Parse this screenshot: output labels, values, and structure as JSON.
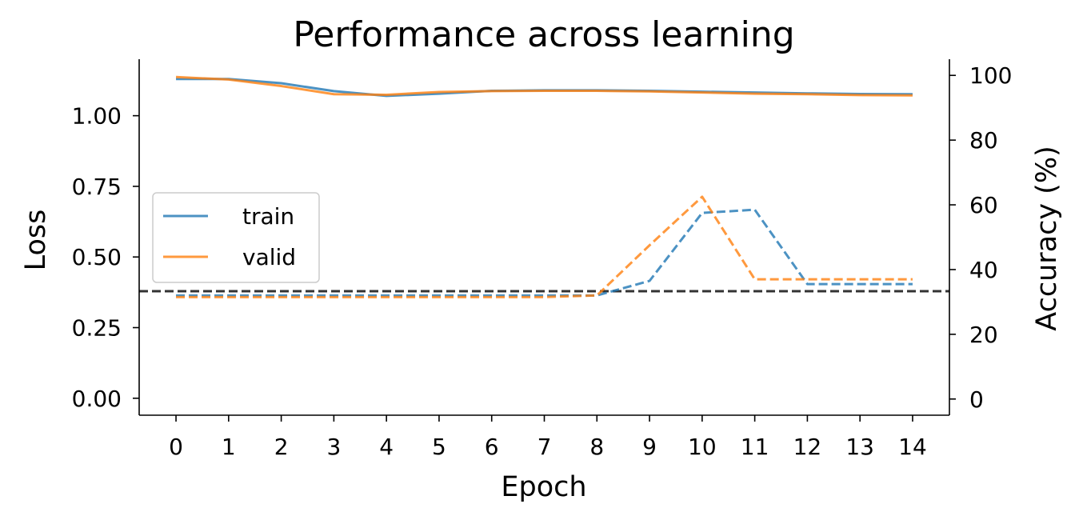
{
  "chart_data": {
    "type": "line",
    "title": "Performance across learning",
    "xlabel": "Epoch",
    "ylabel": "Loss",
    "y2label": "Accuracy (%)",
    "x": [
      0,
      1,
      2,
      3,
      4,
      5,
      6,
      7,
      8,
      9,
      10,
      11,
      12,
      13,
      14
    ],
    "xlim": [
      -0.7,
      14.7
    ],
    "ylim": [
      -0.06,
      1.2
    ],
    "y2lim": [
      -5,
      105
    ],
    "xticks": [
      "0",
      "1",
      "2",
      "3",
      "4",
      "5",
      "6",
      "7",
      "8",
      "9",
      "10",
      "11",
      "12",
      "13",
      "14"
    ],
    "yticks": [
      0.0,
      0.25,
      0.5,
      0.75,
      1.0
    ],
    "ytick_labels": [
      "0.00",
      "0.25",
      "0.50",
      "0.75",
      "1.00"
    ],
    "y2ticks": [
      0,
      20,
      40,
      60,
      80,
      100
    ],
    "y2tick_labels": [
      "0",
      "20",
      "40",
      "60",
      "80",
      "100"
    ],
    "colors": {
      "train": "#1f77b4",
      "valid": "#ff7f0e",
      "chance": "#333333"
    },
    "series": [
      {
        "name": "train",
        "metric": "loss",
        "axis": "left",
        "style": "solid",
        "color": "#1f77b4",
        "values": [
          1.13,
          1.13,
          1.115,
          1.087,
          1.07,
          1.078,
          1.088,
          1.09,
          1.09,
          1.088,
          1.085,
          1.082,
          1.079,
          1.077,
          1.076
        ]
      },
      {
        "name": "valid",
        "metric": "loss",
        "axis": "left",
        "style": "solid",
        "color": "#ff7f0e",
        "values": [
          1.137,
          1.128,
          1.105,
          1.076,
          1.074,
          1.084,
          1.087,
          1.088,
          1.088,
          1.086,
          1.082,
          1.078,
          1.076,
          1.073,
          1.072
        ]
      },
      {
        "axis": "right",
        "metric": "accuracy",
        "style": "dashed",
        "color": "#1f77b4",
        "values": [
          32,
          32,
          32,
          32,
          32,
          32,
          32,
          32,
          32,
          36.5,
          57.5,
          58.5,
          35.5,
          35.5,
          35.5
        ]
      },
      {
        "axis": "right",
        "metric": "accuracy",
        "style": "dashed",
        "color": "#ff7f0e",
        "values": [
          31.5,
          31.5,
          31.5,
          31.5,
          31.5,
          31.5,
          31.5,
          31.5,
          32,
          47.5,
          62.5,
          37,
          37,
          37,
          37
        ]
      }
    ],
    "reference_line": {
      "axis": "right",
      "value": 33.33,
      "style": "dashed",
      "color": "#333333"
    },
    "legend": {
      "placement": "center-left",
      "entries": [
        "train",
        "valid"
      ]
    },
    "grid": false
  }
}
